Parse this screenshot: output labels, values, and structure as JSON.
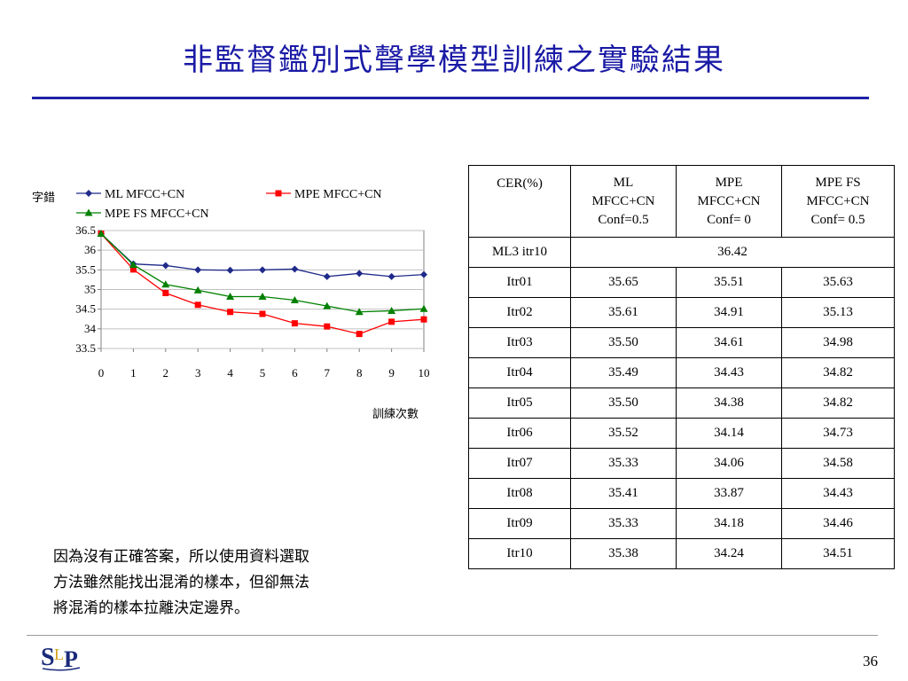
{
  "slide": {
    "title": "非監督鑑別式聲學模型訓練之實驗結果",
    "page_number": "36",
    "caption_lines": [
      "因為沒有正確答案，所以使用資料選取",
      "方法雖然能找出混淆的樣本，但卻無法",
      "將混淆的樣本拉離決定邊界。"
    ],
    "logo_text": "SLP"
  },
  "chart_data": {
    "type": "line",
    "ylabel": "字錯",
    "xlabel": "訓練次數",
    "x": [
      0,
      1,
      2,
      3,
      4,
      5,
      6,
      7,
      8,
      9,
      10
    ],
    "ylim": [
      33.5,
      36.5
    ],
    "yticks": [
      "36.5",
      "36",
      "35.5",
      "35",
      "34.5",
      "34",
      "33.5"
    ],
    "xticks": [
      "0",
      "1",
      "2",
      "3",
      "4",
      "5",
      "6",
      "7",
      "8",
      "9",
      "10"
    ],
    "grid": "horizontal",
    "legend": "top",
    "series": [
      {
        "name": "ML MFCC+CN",
        "color": "#1f2a8a",
        "marker": "diamond",
        "values": [
          36.42,
          35.65,
          35.61,
          35.5,
          35.49,
          35.5,
          35.52,
          35.33,
          35.41,
          35.33,
          35.38
        ]
      },
      {
        "name": "MPE MFCC+CN",
        "color": "#ff0000",
        "marker": "square",
        "values": [
          36.42,
          35.51,
          34.91,
          34.61,
          34.43,
          34.38,
          34.14,
          34.06,
          33.87,
          34.18,
          34.24
        ]
      },
      {
        "name": "MPE FS MFCC+CN",
        "color": "#008000",
        "marker": "triangle",
        "values": [
          36.42,
          35.63,
          35.13,
          34.98,
          34.82,
          34.82,
          34.73,
          34.58,
          34.43,
          34.46,
          34.51
        ]
      }
    ]
  },
  "table": {
    "header": [
      "CER(%)",
      "ML\nMFCC+CN\nConf=0.5",
      "MPE\nMFCC+CN\nConf= 0",
      "MPE FS\nMFCC+CN\nConf= 0.5"
    ],
    "baseline": {
      "label": "ML3 itr10",
      "value": "36.42"
    },
    "rows": [
      [
        "Itr01",
        "35.65",
        "35.51",
        "35.63"
      ],
      [
        "Itr02",
        "35.61",
        "34.91",
        "35.13"
      ],
      [
        "Itr03",
        "35.50",
        "34.61",
        "34.98"
      ],
      [
        "Itr04",
        "35.49",
        "34.43",
        "34.82"
      ],
      [
        "Itr05",
        "35.50",
        "34.38",
        "34.82"
      ],
      [
        "Itr06",
        "35.52",
        "34.14",
        "34.73"
      ],
      [
        "Itr07",
        "35.33",
        "34.06",
        "34.58"
      ],
      [
        "Itr08",
        "35.41",
        "33.87",
        "34.43"
      ],
      [
        "Itr09",
        "35.33",
        "34.18",
        "34.46"
      ],
      [
        "Itr10",
        "35.38",
        "34.24",
        "34.51"
      ]
    ]
  }
}
